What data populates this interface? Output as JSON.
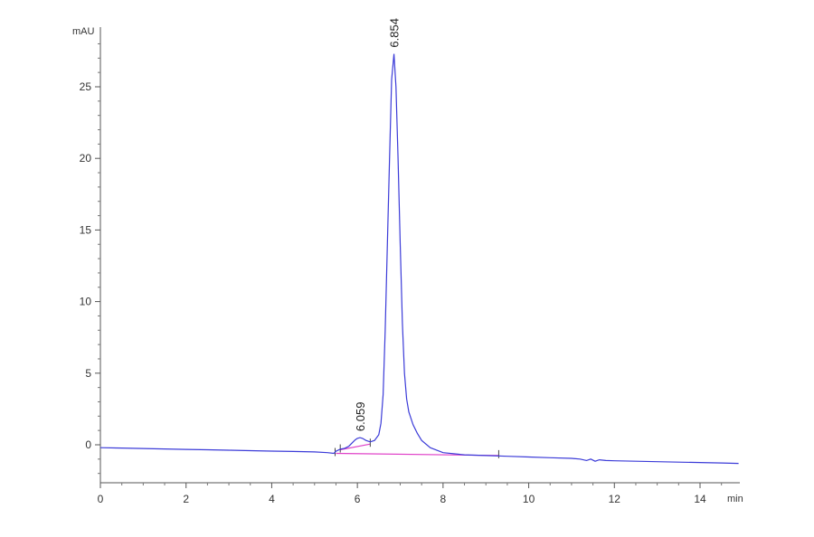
{
  "chart_data": {
    "type": "line",
    "title": "",
    "xlabel": "min",
    "ylabel": "mAU",
    "xlim": [
      0,
      15
    ],
    "ylim": [
      -2.5,
      29
    ],
    "x_ticks": [
      {
        "value": 0,
        "label": "0"
      },
      {
        "value": 2,
        "label": "2"
      },
      {
        "value": 4,
        "label": "4"
      },
      {
        "value": 6,
        "label": "6"
      },
      {
        "value": 8,
        "label": "8"
      },
      {
        "value": 10,
        "label": "10"
      },
      {
        "value": 12,
        "label": "12"
      },
      {
        "value": 14,
        "label": "14"
      }
    ],
    "y_ticks": [
      {
        "value": 0,
        "label": "0"
      },
      {
        "value": 5,
        "label": "5"
      },
      {
        "value": 10,
        "label": "10"
      },
      {
        "value": 15,
        "label": "15"
      },
      {
        "value": 20,
        "label": "20"
      },
      {
        "value": 25,
        "label": "25"
      }
    ],
    "grid": false,
    "peaks": [
      {
        "label": "6.059",
        "x": 6.059,
        "y": 0.5
      },
      {
        "label": "6.854",
        "x": 6.854,
        "y": 27.3
      }
    ],
    "integration_baselines": [
      {
        "x": [
          5.6,
          6.3
        ],
        "y": [
          -0.35,
          0.05
        ]
      },
      {
        "x": [
          5.5,
          9.3
        ],
        "y": [
          -0.6,
          -0.75
        ]
      }
    ],
    "integration_markers": [
      {
        "x": 5.48,
        "y": -0.6
      },
      {
        "x": 5.6,
        "y": -0.35
      },
      {
        "x": 6.3,
        "y": 0.05
      },
      {
        "x": 9.3,
        "y": -0.75
      }
    ],
    "series": [
      {
        "color": "#3b3bd8",
        "x": [
          0,
          0.5,
          1,
          1.5,
          2,
          2.5,
          3,
          3.5,
          4,
          4.5,
          5,
          5.3,
          5.45,
          5.5,
          5.6,
          5.7,
          5.8,
          5.9,
          5.95,
          6.0,
          6.06,
          6.12,
          6.2,
          6.3,
          6.4,
          6.5,
          6.55,
          6.6,
          6.65,
          6.7,
          6.75,
          6.8,
          6.854,
          6.9,
          6.95,
          7.0,
          7.05,
          7.1,
          7.15,
          7.2,
          7.3,
          7.4,
          7.5,
          7.7,
          8.0,
          8.5,
          9.0,
          9.5,
          10,
          10.5,
          11,
          11.2,
          11.35,
          11.45,
          11.55,
          11.65,
          11.8,
          12,
          12.5,
          13,
          13.5,
          14,
          14.5,
          14.9
        ],
        "y": [
          -0.2,
          -0.23,
          -0.26,
          -0.29,
          -0.32,
          -0.35,
          -0.38,
          -0.41,
          -0.44,
          -0.47,
          -0.5,
          -0.55,
          -0.6,
          -0.45,
          -0.3,
          -0.25,
          -0.1,
          0.2,
          0.35,
          0.45,
          0.5,
          0.45,
          0.3,
          0.2,
          0.3,
          0.7,
          1.5,
          3.5,
          8,
          14,
          20,
          25.5,
          27.3,
          25,
          20,
          14,
          8.5,
          5,
          3.2,
          2.3,
          1.4,
          0.8,
          0.3,
          -0.2,
          -0.55,
          -0.7,
          -0.75,
          -0.8,
          -0.85,
          -0.9,
          -0.95,
          -1.0,
          -1.1,
          -1.0,
          -1.15,
          -1.05,
          -1.1,
          -1.12,
          -1.15,
          -1.18,
          -1.21,
          -1.24,
          -1.27,
          -1.3
        ]
      }
    ]
  }
}
